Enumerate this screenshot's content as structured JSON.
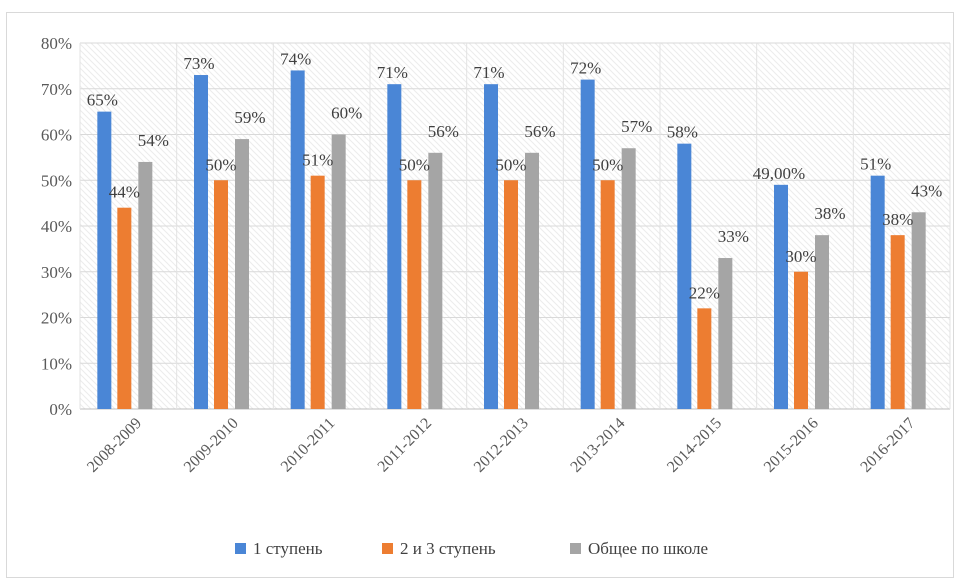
{
  "chart_data": {
    "type": "bar",
    "categories": [
      "2008-2009",
      "2009-2010",
      "2010-2011",
      "2011-2012",
      "2012-2013",
      "2013-2014",
      "2014-2015",
      "2015-2016",
      "2016-2017"
    ],
    "series": [
      {
        "name": "1 ступень",
        "color": "#4a86d6",
        "values": [
          65,
          73,
          74,
          71,
          71,
          72,
          58,
          49,
          51
        ],
        "labels": [
          "65%",
          "73%",
          "74%",
          "71%",
          "71%",
          "72%",
          "58%",
          "49,00%",
          "51%"
        ]
      },
      {
        "name": "2 и 3 ступень",
        "color": "#ed7d31",
        "values": [
          44,
          50,
          51,
          50,
          50,
          50,
          22,
          30,
          38
        ],
        "labels": [
          "44%",
          "50%",
          "51%",
          "50%",
          "50%",
          "50%",
          "22%",
          "30%",
          "38%"
        ]
      },
      {
        "name": "Общее по школе",
        "color": "#a5a5a5",
        "values": [
          54,
          59,
          60,
          56,
          56,
          57,
          33,
          38,
          43
        ],
        "labels": [
          "54%",
          "59%",
          "60%",
          "56%",
          "56%",
          "57%",
          "33%",
          "38%",
          "43%"
        ]
      }
    ],
    "yticks": [
      "0%",
      "10%",
      "20%",
      "30%",
      "40%",
      "50%",
      "60%",
      "70%",
      "80%"
    ],
    "ylim": [
      0,
      80
    ],
    "grid": true,
    "legend_position": "bottom",
    "title": "",
    "xlabel": "",
    "ylabel": ""
  }
}
